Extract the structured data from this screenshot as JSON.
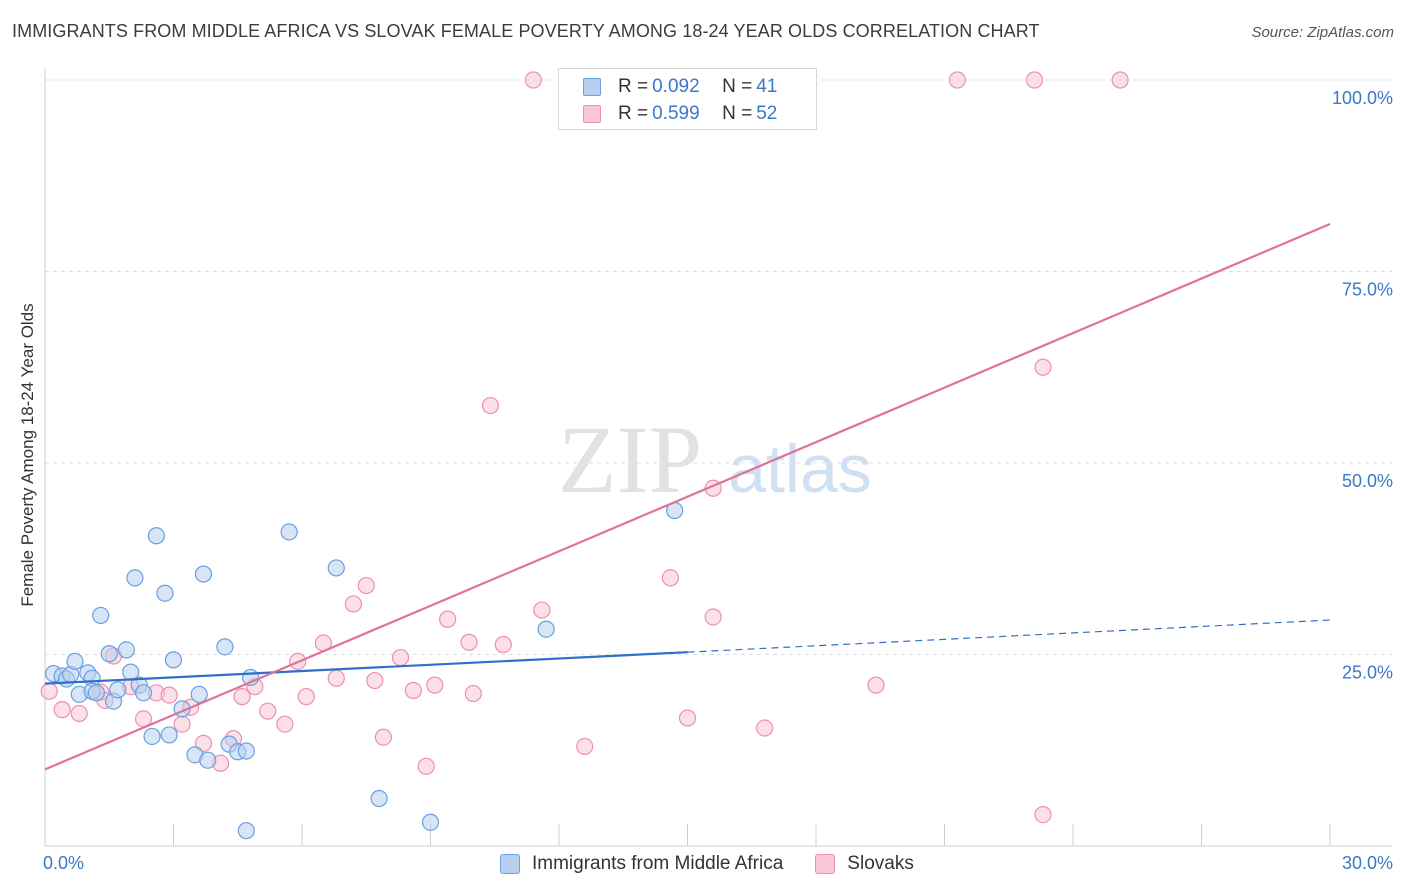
{
  "title": "IMMIGRANTS FROM MIDDLE AFRICA VS SLOVAK FEMALE POVERTY AMONG 18-24 YEAR OLDS CORRELATION CHART",
  "source": "Source: ZipAtlas.com",
  "watermark": {
    "zip": "ZIP",
    "atlas": "atlas"
  },
  "colors": {
    "blue_fill": "#b7d0f0",
    "blue_stroke": "#6a9fe0",
    "blue_line": "#2f6fcc",
    "pink_fill": "#f9c6d6",
    "pink_stroke": "#ee8fae",
    "pink_line": "#e0729a",
    "axis_label": "#3a78c8"
  },
  "legend": {
    "rows": [
      {
        "r_label": "R = ",
        "r_value": "0.092",
        "n_label": "N = ",
        "n_value": "41"
      },
      {
        "r_label": "R = ",
        "r_value": "0.599",
        "n_label": "N = ",
        "n_value": "52"
      }
    ]
  },
  "chart_data": {
    "type": "scatter",
    "title": "IMMIGRANTS FROM MIDDLE AFRICA VS SLOVAK FEMALE POVERTY AMONG 18-24 YEAR OLDS CORRELATION CHART",
    "xlabel": "",
    "ylabel": "Female Poverty Among 18-24 Year Olds",
    "xlim": [
      0,
      30
    ],
    "ylim": [
      0,
      100
    ],
    "x_tick_labels": [
      "0.0%",
      "30.0%"
    ],
    "y_tick_labels": [
      "25.0%",
      "50.0%",
      "75.0%",
      "100.0%"
    ],
    "y_ticks": [
      25,
      50,
      75,
      100
    ],
    "grid": true,
    "legend_position": "top-center",
    "series": [
      {
        "name": "Immigrants from Middle Africa",
        "r": 0.092,
        "n": 41,
        "trend": {
          "x0": 0,
          "y0": 21.2,
          "x1": 15,
          "y1": 25.3,
          "dashed_to_x": 30,
          "dashed_to_y": 29.5
        },
        "points": [
          [
            0.2,
            22.5
          ],
          [
            0.4,
            22.2
          ],
          [
            0.5,
            21.8
          ],
          [
            0.6,
            22.4
          ],
          [
            0.7,
            24.1
          ],
          [
            0.8,
            19.8
          ],
          [
            1.0,
            22.6
          ],
          [
            1.1,
            21.9
          ],
          [
            1.1,
            20.2
          ],
          [
            1.2,
            20.0
          ],
          [
            1.3,
            30.1
          ],
          [
            1.5,
            25.1
          ],
          [
            1.6,
            18.9
          ],
          [
            1.7,
            20.4
          ],
          [
            1.9,
            25.6
          ],
          [
            2.0,
            22.7
          ],
          [
            2.1,
            35.0
          ],
          [
            2.2,
            21.0
          ],
          [
            2.3,
            20.0
          ],
          [
            2.5,
            14.3
          ],
          [
            2.6,
            40.5
          ],
          [
            2.8,
            33.0
          ],
          [
            2.9,
            14.5
          ],
          [
            3.0,
            24.3
          ],
          [
            3.2,
            17.9
          ],
          [
            3.5,
            11.9
          ],
          [
            3.6,
            19.8
          ],
          [
            3.7,
            35.5
          ],
          [
            3.8,
            11.2
          ],
          [
            4.2,
            26.0
          ],
          [
            4.3,
            13.3
          ],
          [
            4.5,
            12.3
          ],
          [
            4.7,
            12.4
          ],
          [
            4.8,
            22.0
          ],
          [
            4.7,
            2.0
          ],
          [
            5.7,
            41.0
          ],
          [
            6.8,
            36.3
          ],
          [
            7.8,
            6.2
          ],
          [
            9.0,
            3.1
          ],
          [
            11.7,
            28.3
          ],
          [
            14.7,
            43.8
          ]
        ]
      },
      {
        "name": "Slovaks",
        "r": 0.599,
        "n": 52,
        "trend": {
          "x0": 0,
          "y0": 10.0,
          "x1": 30,
          "y1": 81.2
        },
        "points": [
          [
            0.1,
            20.2
          ],
          [
            0.4,
            17.8
          ],
          [
            0.8,
            17.3
          ],
          [
            1.3,
            20.1
          ],
          [
            1.4,
            19.0
          ],
          [
            1.6,
            24.8
          ],
          [
            2.0,
            20.8
          ],
          [
            2.3,
            16.6
          ],
          [
            2.6,
            20.0
          ],
          [
            2.9,
            19.7
          ],
          [
            3.2,
            15.9
          ],
          [
            3.4,
            18.1
          ],
          [
            3.7,
            13.4
          ],
          [
            4.1,
            10.8
          ],
          [
            4.4,
            14.0
          ],
          [
            4.6,
            19.5
          ],
          [
            4.9,
            20.8
          ],
          [
            5.2,
            17.6
          ],
          [
            5.6,
            15.9
          ],
          [
            5.9,
            24.1
          ],
          [
            6.1,
            19.5
          ],
          [
            6.5,
            26.5
          ],
          [
            6.8,
            21.9
          ],
          [
            7.2,
            31.6
          ],
          [
            7.5,
            34.0
          ],
          [
            7.7,
            21.6
          ],
          [
            7.9,
            14.2
          ],
          [
            8.3,
            24.6
          ],
          [
            8.6,
            20.3
          ],
          [
            8.9,
            10.4
          ],
          [
            9.1,
            21.0
          ],
          [
            9.4,
            29.6
          ],
          [
            9.9,
            26.6
          ],
          [
            10.0,
            19.9
          ],
          [
            10.4,
            57.5
          ],
          [
            10.7,
            26.3
          ],
          [
            11.4,
            100.0
          ],
          [
            11.6,
            30.8
          ],
          [
            12.6,
            13.0
          ],
          [
            14.6,
            35.0
          ],
          [
            15.0,
            16.7
          ],
          [
            15.6,
            46.7
          ],
          [
            15.6,
            29.9
          ],
          [
            16.1,
            94.8
          ],
          [
            16.6,
            100.0
          ],
          [
            16.8,
            15.4
          ],
          [
            19.4,
            21.0
          ],
          [
            21.3,
            100.0
          ],
          [
            23.1,
            100.0
          ],
          [
            23.3,
            4.1
          ],
          [
            23.3,
            62.5
          ],
          [
            25.1,
            100.0
          ]
        ]
      }
    ]
  }
}
